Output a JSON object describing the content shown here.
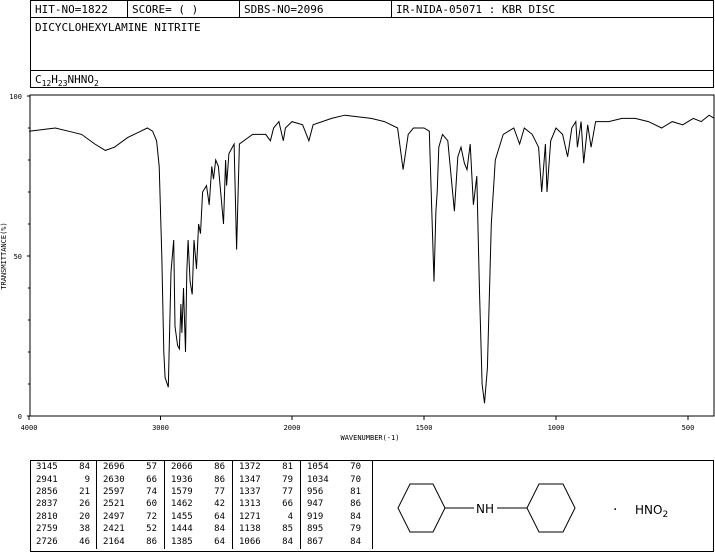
{
  "header": {
    "hit_no": "HIT-NO=1822",
    "score": "SCORE=  (   )",
    "sdbs_no": "SDBS-NO=2096",
    "method": "IR-NIDA-05071 : KBR DISC"
  },
  "compound_name": "DICYCLOHEXYLAMINE NITRITE",
  "formula": {
    "c": "C",
    "c_n": "12",
    "h": "H",
    "h_n": "23",
    "rest": "NHNO",
    "o_n": "2"
  },
  "structure": {
    "nh": "NH",
    "salt_dot": "·",
    "salt": "HNO",
    "salt_sub": "2"
  },
  "chart_data": {
    "type": "line",
    "title": "",
    "xlabel": "WAVENUMBER(-1)",
    "ylabel": "TRANSMITTANCE(%)",
    "xlim": [
      4000,
      400
    ],
    "ylim": [
      0,
      100
    ],
    "x_ticks": [
      "4000",
      "3000",
      "2000",
      "1500",
      "1000",
      "500"
    ],
    "y_ticks": [
      "100",
      "50",
      "0"
    ],
    "series": [
      {
        "points": [
          [
            4000,
            89
          ],
          [
            3800,
            90
          ],
          [
            3700,
            89
          ],
          [
            3600,
            88
          ],
          [
            3500,
            85
          ],
          [
            3420,
            83
          ],
          [
            3350,
            84
          ],
          [
            3250,
            87
          ],
          [
            3150,
            89
          ],
          [
            3100,
            90
          ],
          [
            3060,
            89
          ],
          [
            3030,
            86
          ],
          [
            3010,
            78
          ],
          [
            2990,
            50
          ],
          [
            2975,
            20
          ],
          [
            2965,
            12
          ],
          [
            2941,
            9
          ],
          [
            2920,
            45
          ],
          [
            2900,
            55
          ],
          [
            2890,
            28
          ],
          [
            2870,
            22
          ],
          [
            2856,
            21
          ],
          [
            2845,
            35
          ],
          [
            2837,
            26
          ],
          [
            2825,
            40
          ],
          [
            2810,
            20
          ],
          [
            2800,
            45
          ],
          [
            2790,
            55
          ],
          [
            2775,
            42
          ],
          [
            2759,
            38
          ],
          [
            2745,
            55
          ],
          [
            2726,
            46
          ],
          [
            2710,
            60
          ],
          [
            2696,
            57
          ],
          [
            2680,
            70
          ],
          [
            2650,
            72
          ],
          [
            2630,
            66
          ],
          [
            2610,
            78
          ],
          [
            2597,
            74
          ],
          [
            2580,
            80
          ],
          [
            2560,
            78
          ],
          [
            2521,
            60
          ],
          [
            2505,
            80
          ],
          [
            2497,
            72
          ],
          [
            2480,
            82
          ],
          [
            2440,
            85
          ],
          [
            2421,
            52
          ],
          [
            2400,
            85
          ],
          [
            2300,
            88
          ],
          [
            2200,
            88
          ],
          [
            2164,
            86
          ],
          [
            2140,
            90
          ],
          [
            2100,
            92
          ],
          [
            2066,
            86
          ],
          [
            2050,
            90
          ],
          [
            2000,
            92
          ],
          [
            1960,
            91
          ],
          [
            1936,
            86
          ],
          [
            1920,
            91
          ],
          [
            1850,
            93
          ],
          [
            1800,
            94
          ],
          [
            1700,
            93
          ],
          [
            1650,
            92
          ],
          [
            1600,
            90
          ],
          [
            1579,
            77
          ],
          [
            1560,
            88
          ],
          [
            1540,
            90
          ],
          [
            1500,
            90
          ],
          [
            1480,
            89
          ],
          [
            1462,
            42
          ],
          [
            1455,
            64
          ],
          [
            1450,
            70
          ],
          [
            1444,
            84
          ],
          [
            1430,
            88
          ],
          [
            1410,
            86
          ],
          [
            1385,
            64
          ],
          [
            1372,
            81
          ],
          [
            1360,
            84
          ],
          [
            1347,
            79
          ],
          [
            1337,
            77
          ],
          [
            1325,
            85
          ],
          [
            1313,
            66
          ],
          [
            1300,
            75
          ],
          [
            1290,
            40
          ],
          [
            1280,
            10
          ],
          [
            1271,
            4
          ],
          [
            1260,
            15
          ],
          [
            1245,
            60
          ],
          [
            1230,
            80
          ],
          [
            1200,
            88
          ],
          [
            1160,
            90
          ],
          [
            1138,
            85
          ],
          [
            1120,
            90
          ],
          [
            1090,
            88
          ],
          [
            1066,
            84
          ],
          [
            1054,
            70
          ],
          [
            1040,
            85
          ],
          [
            1034,
            70
          ],
          [
            1020,
            86
          ],
          [
            1000,
            90
          ],
          [
            975,
            88
          ],
          [
            956,
            81
          ],
          [
            940,
            90
          ],
          [
            925,
            92
          ],
          [
            919,
            84
          ],
          [
            905,
            92
          ],
          [
            895,
            79
          ],
          [
            880,
            91
          ],
          [
            867,
            84
          ],
          [
            850,
            92
          ],
          [
            800,
            92
          ],
          [
            750,
            93
          ],
          [
            700,
            93
          ],
          [
            650,
            92
          ],
          [
            600,
            90
          ],
          [
            560,
            92
          ],
          [
            520,
            91
          ],
          [
            480,
            93
          ],
          [
            450,
            92
          ],
          [
            420,
            94
          ],
          [
            400,
            93
          ]
        ]
      }
    ],
    "peak_table": [
      [
        [
          "3145",
          "84"
        ],
        [
          "2941",
          "9"
        ],
        [
          "2856",
          "21"
        ],
        [
          "2837",
          "26"
        ],
        [
          "2810",
          "20"
        ],
        [
          "2759",
          "38"
        ],
        [
          "2726",
          "46"
        ]
      ],
      [
        [
          "2696",
          "57"
        ],
        [
          "2630",
          "66"
        ],
        [
          "2597",
          "74"
        ],
        [
          "2521",
          "60"
        ],
        [
          "2497",
          "72"
        ],
        [
          "2421",
          "52"
        ],
        [
          "2164",
          "86"
        ]
      ],
      [
        [
          "2066",
          "86"
        ],
        [
          "1936",
          "86"
        ],
        [
          "1579",
          "77"
        ],
        [
          "1462",
          "42"
        ],
        [
          "1455",
          "64"
        ],
        [
          "1444",
          "84"
        ],
        [
          "1385",
          "64"
        ]
      ],
      [
        [
          "1372",
          "81"
        ],
        [
          "1347",
          "79"
        ],
        [
          "1337",
          "77"
        ],
        [
          "1313",
          "66"
        ],
        [
          "1271",
          "4"
        ],
        [
          "1138",
          "85"
        ],
        [
          "1066",
          "84"
        ]
      ],
      [
        [
          "1054",
          "70"
        ],
        [
          "1034",
          "70"
        ],
        [
          "956",
          "81"
        ],
        [
          "947",
          "86"
        ],
        [
          "919",
          "84"
        ],
        [
          "895",
          "79"
        ],
        [
          "867",
          "84"
        ]
      ]
    ]
  }
}
